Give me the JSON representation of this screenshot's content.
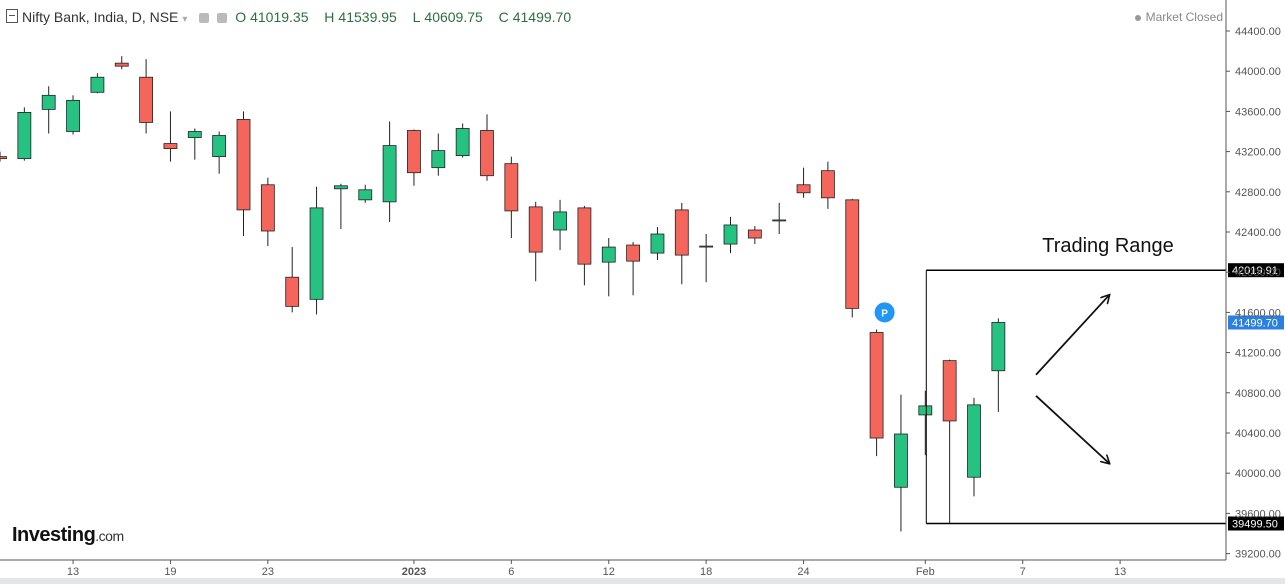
{
  "header": {
    "symbol": "Nifty Bank, India, D, NSE",
    "dropdown_icon": "chevron-down-icon",
    "open_label": "O",
    "open": "41019.35",
    "high_label": "H",
    "high": "41539.95",
    "low_label": "L",
    "low": "40609.75",
    "close_label": "C",
    "close": "41499.70",
    "status": "Market Closed"
  },
  "brand": {
    "name": "Investing",
    "suffix": ".com"
  },
  "colors": {
    "up": "#26c281",
    "down": "#f4665c",
    "last_price_bg": "#2a7fe0",
    "line": "#000000",
    "marker": "#2196f3"
  },
  "chart_data": {
    "type": "candlestick",
    "title": "Nifty Bank, India, D, NSE",
    "y_axis": {
      "ylim": [
        39050,
        44650
      ],
      "ticks": [
        "44400.00",
        "44000.00",
        "43600.00",
        "43200.00",
        "42800.00",
        "42400.00",
        "42000.00",
        "41600.00",
        "41200.00",
        "40800.00",
        "40400.00",
        "40000.00",
        "39600.00",
        "39200.00"
      ],
      "position": "right"
    },
    "x_axis": {
      "ticks": [
        {
          "index": 3,
          "label": "13"
        },
        {
          "index": 7,
          "label": "19"
        },
        {
          "index": 11,
          "label": "23"
        },
        {
          "index": 17,
          "label": "2023"
        },
        {
          "index": 21,
          "label": "6"
        },
        {
          "index": 25,
          "label": "12"
        },
        {
          "index": 29,
          "label": "18"
        },
        {
          "index": 33,
          "label": "24"
        },
        {
          "index": 38,
          "label": "Feb"
        },
        {
          "index": 42,
          "label": "7"
        },
        {
          "index": 46,
          "label": "13"
        }
      ]
    },
    "candles": [
      {
        "o": 43150,
        "h": 43200,
        "l": 43100,
        "c": 43130
      },
      {
        "o": 43130,
        "h": 43640,
        "l": 43110,
        "c": 43590
      },
      {
        "o": 43620,
        "h": 43850,
        "l": 43380,
        "c": 43760
      },
      {
        "o": 43400,
        "h": 43760,
        "l": 43370,
        "c": 43710
      },
      {
        "o": 43790,
        "h": 43980,
        "l": 43780,
        "c": 43940
      },
      {
        "o": 44080,
        "h": 44150,
        "l": 44020,
        "c": 44050
      },
      {
        "o": 43940,
        "h": 44120,
        "l": 43380,
        "c": 43490
      },
      {
        "o": 43280,
        "h": 43600,
        "l": 43100,
        "c": 43230
      },
      {
        "o": 43340,
        "h": 43430,
        "l": 43120,
        "c": 43400
      },
      {
        "o": 43150,
        "h": 43400,
        "l": 42980,
        "c": 43360
      },
      {
        "o": 43520,
        "h": 43600,
        "l": 42360,
        "c": 42620
      },
      {
        "o": 42870,
        "h": 42940,
        "l": 42260,
        "c": 42410
      },
      {
        "o": 41950,
        "h": 42250,
        "l": 41600,
        "c": 41660
      },
      {
        "o": 41730,
        "h": 42850,
        "l": 41580,
        "c": 42640
      },
      {
        "o": 42830,
        "h": 42880,
        "l": 42430,
        "c": 42860
      },
      {
        "o": 42720,
        "h": 42870,
        "l": 42690,
        "c": 42820
      },
      {
        "o": 42700,
        "h": 43500,
        "l": 42500,
        "c": 43260
      },
      {
        "o": 43410,
        "h": 43420,
        "l": 42860,
        "c": 42990
      },
      {
        "o": 43040,
        "h": 43380,
        "l": 42960,
        "c": 43210
      },
      {
        "o": 43160,
        "h": 43480,
        "l": 43140,
        "c": 43430
      },
      {
        "o": 43410,
        "h": 43570,
        "l": 42910,
        "c": 42960
      },
      {
        "o": 43080,
        "h": 43150,
        "l": 42340,
        "c": 42610
      },
      {
        "o": 42650,
        "h": 42700,
        "l": 41910,
        "c": 42200
      },
      {
        "o": 42420,
        "h": 42720,
        "l": 42220,
        "c": 42600
      },
      {
        "o": 42640,
        "h": 42660,
        "l": 41870,
        "c": 42080
      },
      {
        "o": 42100,
        "h": 42340,
        "l": 41760,
        "c": 42250
      },
      {
        "o": 42270,
        "h": 42300,
        "l": 41770,
        "c": 42110
      },
      {
        "o": 42190,
        "h": 42450,
        "l": 42120,
        "c": 42380
      },
      {
        "o": 42620,
        "h": 42690,
        "l": 41880,
        "c": 42170
      },
      {
        "o": 42250,
        "h": 42380,
        "l": 41900,
        "c": 42260
      },
      {
        "o": 42280,
        "h": 42550,
        "l": 42190,
        "c": 42470
      },
      {
        "o": 42420,
        "h": 42460,
        "l": 42280,
        "c": 42340
      },
      {
        "o": 42520,
        "h": 42690,
        "l": 42380,
        "c": 42520
      },
      {
        "o": 42870,
        "h": 43040,
        "l": 42740,
        "c": 42790
      },
      {
        "o": 43010,
        "h": 43100,
        "l": 42630,
        "c": 42740
      },
      {
        "o": 42720,
        "h": 42730,
        "l": 41550,
        "c": 41640
      },
      {
        "o": 41400,
        "h": 41430,
        "l": 40170,
        "c": 40350
      },
      {
        "o": 39860,
        "h": 40780,
        "l": 39420,
        "c": 40390
      },
      {
        "o": 40580,
        "h": 40820,
        "l": 40180,
        "c": 40670
      },
      {
        "o": 41120,
        "h": 41130,
        "l": 39500,
        "c": 40520
      },
      {
        "o": 39960,
        "h": 40750,
        "l": 39770,
        "c": 40680
      },
      {
        "o": 41019.35,
        "h": 41539.95,
        "l": 40609.75,
        "c": 41499.7
      }
    ],
    "annotations": {
      "text": "Trading Range",
      "range_high": "42019.91",
      "range_low": "39499.50",
      "last_price": "41499.70",
      "marker_label": "P"
    }
  }
}
